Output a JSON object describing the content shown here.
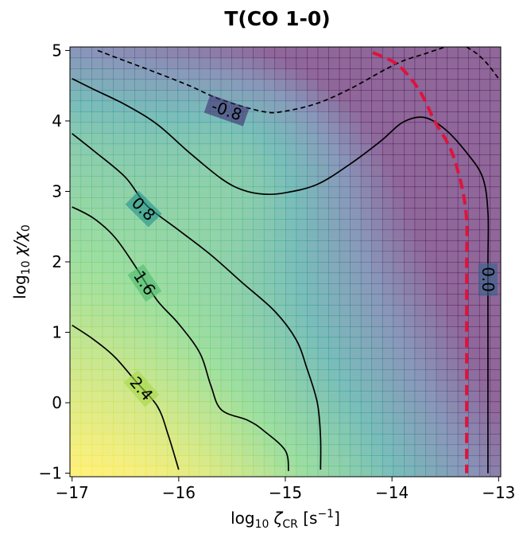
{
  "chart_data": {
    "type": "heatmap",
    "title": "T(CO 1-0)",
    "xlabel": {
      "prefix": "log",
      "prefix_sub": "10",
      "symbol": "ζ",
      "symbol_sub": "CR",
      "unit_open": " [s",
      "unit_sup": "−1",
      "unit_close": "]"
    },
    "ylabel": {
      "prefix": "log",
      "prefix_sub": "10",
      "symbol": "χ/χ",
      "symbol_sub": "0"
    },
    "xlim": [
      -17.02,
      -12.98
    ],
    "ylim": [
      -1.05,
      5.05
    ],
    "xticks": [
      {
        "value": -17,
        "label": "−17"
      },
      {
        "value": -16,
        "label": "−16"
      },
      {
        "value": -15,
        "label": "−15"
      },
      {
        "value": -14,
        "label": "−14"
      },
      {
        "value": -13,
        "label": "−13"
      }
    ],
    "yticks": [
      {
        "value": -1,
        "label": "−1"
      },
      {
        "value": 0,
        "label": "0"
      },
      {
        "value": 1,
        "label": "1"
      },
      {
        "value": 2,
        "label": "2"
      },
      {
        "value": 3,
        "label": "3"
      },
      {
        "value": 4,
        "label": "4"
      },
      {
        "value": 5,
        "label": "5"
      }
    ],
    "colormap": [
      "#440154",
      "#3b528b",
      "#21918c",
      "#5ec962",
      "#fde725"
    ],
    "heat_alpha": 0.6,
    "vmin": -1.2,
    "vmax": 3.2,
    "contours": [
      {
        "level": -0.8,
        "label": "-0.8",
        "dashed": true,
        "points": [
          [
            -16.76,
            5.0
          ],
          [
            -16.5,
            4.85
          ],
          [
            -16.2,
            4.68
          ],
          [
            -15.9,
            4.5
          ],
          [
            -15.6,
            4.3
          ],
          [
            -15.2,
            4.13
          ],
          [
            -15.0,
            4.14
          ],
          [
            -14.7,
            4.25
          ],
          [
            -14.4,
            4.45
          ],
          [
            -14.1,
            4.7
          ],
          [
            -13.9,
            4.85
          ],
          [
            -13.7,
            4.95
          ],
          [
            -13.5,
            5.05
          ]
        ],
        "label_at": [
          -15.55,
          4.15
        ]
      },
      {
        "level": -0.8,
        "label": "",
        "dashed": true,
        "points": [
          [
            -13.3,
            5.05
          ],
          [
            -13.2,
            4.95
          ],
          [
            -13.1,
            4.8
          ],
          [
            -13.0,
            4.6
          ]
        ],
        "label_at": null
      },
      {
        "level": 0.0,
        "label": "0.0",
        "dashed": false,
        "points": [
          [
            -17.0,
            4.6
          ],
          [
            -16.8,
            4.45
          ],
          [
            -16.5,
            4.23
          ],
          [
            -16.2,
            3.95
          ],
          [
            -15.9,
            3.55
          ],
          [
            -15.6,
            3.18
          ],
          [
            -15.4,
            3.02
          ],
          [
            -15.2,
            2.96
          ],
          [
            -15.0,
            2.98
          ],
          [
            -14.7,
            3.1
          ],
          [
            -14.4,
            3.38
          ],
          [
            -14.1,
            3.72
          ],
          [
            -13.9,
            3.98
          ],
          [
            -13.7,
            4.05
          ],
          [
            -13.5,
            3.88
          ],
          [
            -13.3,
            3.55
          ],
          [
            -13.15,
            3.2
          ],
          [
            -13.1,
            2.7
          ],
          [
            -13.1,
            2.0
          ],
          [
            -13.1,
            1.0
          ],
          [
            -13.1,
            0.0
          ],
          [
            -13.1,
            -1.0
          ]
        ],
        "label_at": [
          -13.1,
          1.75
        ]
      },
      {
        "level": 0.8,
        "label": "0.8",
        "dashed": false,
        "points": [
          [
            -17.0,
            3.82
          ],
          [
            -16.8,
            3.58
          ],
          [
            -16.5,
            3.2
          ],
          [
            -16.3,
            2.8
          ],
          [
            -16.0,
            2.45
          ],
          [
            -15.7,
            2.1
          ],
          [
            -15.4,
            1.7
          ],
          [
            -15.1,
            1.3
          ],
          [
            -14.9,
            0.9
          ],
          [
            -14.8,
            0.5
          ],
          [
            -14.7,
            0.0
          ],
          [
            -14.67,
            -0.5
          ],
          [
            -14.67,
            -0.95
          ]
        ],
        "label_at": [
          -16.33,
          2.75
        ]
      },
      {
        "level": 1.6,
        "label": "1.6",
        "dashed": false,
        "points": [
          [
            -17.0,
            2.78
          ],
          [
            -16.8,
            2.62
          ],
          [
            -16.6,
            2.35
          ],
          [
            -16.4,
            1.92
          ],
          [
            -16.2,
            1.45
          ],
          [
            -16.0,
            1.12
          ],
          [
            -15.8,
            0.7
          ],
          [
            -15.7,
            0.25
          ],
          [
            -15.6,
            -0.1
          ],
          [
            -15.35,
            -0.25
          ],
          [
            -15.2,
            -0.4
          ],
          [
            -15.0,
            -0.68
          ],
          [
            -14.97,
            -0.97
          ]
        ],
        "label_at": [
          -16.32,
          1.7
        ]
      },
      {
        "level": 2.4,
        "label": "2.4",
        "dashed": false,
        "points": [
          [
            -17.0,
            1.1
          ],
          [
            -16.8,
            0.9
          ],
          [
            -16.6,
            0.65
          ],
          [
            -16.4,
            0.3
          ],
          [
            -16.2,
            -0.05
          ],
          [
            -16.1,
            -0.45
          ],
          [
            -16.0,
            -0.95
          ]
        ],
        "label_at": [
          -16.35,
          0.2
        ]
      }
    ],
    "boundary": {
      "color": "#dc143c",
      "dashed": true,
      "points": [
        [
          -14.18,
          4.97
        ],
        [
          -13.95,
          4.8
        ],
        [
          -13.75,
          4.45
        ],
        [
          -13.6,
          4.0
        ],
        [
          -13.45,
          3.6
        ],
        [
          -13.35,
          3.1
        ],
        [
          -13.3,
          2.6
        ],
        [
          -13.3,
          2.0
        ],
        [
          -13.3,
          1.0
        ],
        [
          -13.3,
          0.0
        ],
        [
          -13.3,
          -1.0
        ]
      ]
    }
  }
}
